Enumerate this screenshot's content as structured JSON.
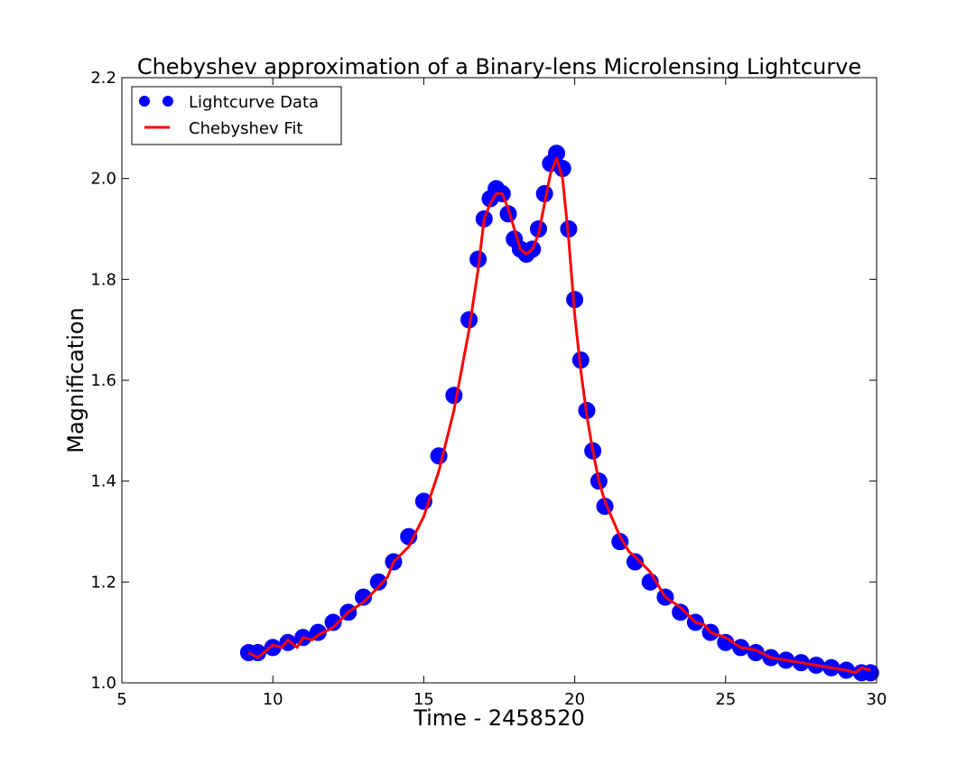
{
  "chart_data": {
    "type": "line",
    "title": "Chebyshev approximation of a Binary-lens Microlensing Lightcurve",
    "xlabel": "Time - 2458520",
    "ylabel": "Magnification",
    "xlim": [
      5,
      30
    ],
    "ylim": [
      1.0,
      2.2
    ],
    "xticks": [
      5,
      10,
      15,
      20,
      25,
      30
    ],
    "xtick_labels": [
      "5",
      "10",
      "15",
      "20",
      "25",
      "30"
    ],
    "yticks": [
      1.0,
      1.2,
      1.4,
      1.6,
      1.8,
      2.0,
      2.2
    ],
    "ytick_labels": [
      "1.0",
      "1.2",
      "1.4",
      "1.6",
      "1.8",
      "2.0",
      "2.2"
    ],
    "grid": false,
    "legend_position": "top-left",
    "series": [
      {
        "name": "Lightcurve Data",
        "kind": "scatter",
        "color": "#0000ff",
        "x": [
          9.2,
          9.5,
          10.0,
          10.5,
          11.0,
          11.5,
          12.0,
          12.5,
          13.0,
          13.5,
          14.0,
          14.5,
          15.0,
          15.5,
          16.0,
          16.5,
          16.8,
          17.0,
          17.2,
          17.4,
          17.6,
          17.8,
          18.0,
          18.2,
          18.4,
          18.6,
          18.8,
          19.0,
          19.2,
          19.4,
          19.6,
          19.8,
          20.0,
          20.2,
          20.4,
          20.6,
          20.8,
          21.0,
          21.5,
          22.0,
          22.5,
          23.0,
          23.5,
          24.0,
          24.5,
          25.0,
          25.5,
          26.0,
          26.5,
          27.0,
          27.5,
          28.0,
          28.5,
          29.0,
          29.5,
          29.8
        ],
        "y": [
          1.06,
          1.06,
          1.07,
          1.08,
          1.09,
          1.1,
          1.12,
          1.14,
          1.17,
          1.2,
          1.24,
          1.29,
          1.36,
          1.45,
          1.57,
          1.72,
          1.84,
          1.92,
          1.96,
          1.98,
          1.97,
          1.93,
          1.88,
          1.86,
          1.85,
          1.86,
          1.9,
          1.97,
          2.03,
          2.05,
          2.02,
          1.9,
          1.76,
          1.64,
          1.54,
          1.46,
          1.4,
          1.35,
          1.28,
          1.24,
          1.2,
          1.17,
          1.14,
          1.12,
          1.1,
          1.08,
          1.07,
          1.06,
          1.05,
          1.045,
          1.04,
          1.035,
          1.03,
          1.025,
          1.02,
          1.02
        ]
      },
      {
        "name": "Chebyshev Fit",
        "kind": "line",
        "color": "#ff0000",
        "x": [
          9.2,
          9.5,
          9.8,
          10.0,
          10.3,
          10.5,
          10.8,
          11.0,
          11.3,
          11.5,
          12.0,
          12.5,
          13.0,
          13.5,
          13.8,
          14.0,
          14.5,
          15.0,
          15.5,
          16.0,
          16.5,
          16.8,
          17.0,
          17.2,
          17.4,
          17.6,
          17.8,
          18.0,
          18.2,
          18.4,
          18.6,
          18.8,
          19.0,
          19.2,
          19.4,
          19.6,
          19.8,
          20.0,
          20.2,
          20.4,
          20.6,
          20.8,
          21.0,
          21.5,
          21.8,
          22.0,
          22.5,
          23.0,
          23.5,
          24.0,
          24.3,
          24.5,
          25.0,
          25.5,
          26.0,
          26.5,
          27.0,
          27.5,
          28.0,
          28.5,
          29.0,
          29.3,
          29.5,
          29.8
        ],
        "y": [
          1.06,
          1.05,
          1.065,
          1.075,
          1.07,
          1.085,
          1.07,
          1.09,
          1.085,
          1.095,
          1.11,
          1.14,
          1.16,
          1.19,
          1.21,
          1.24,
          1.27,
          1.33,
          1.42,
          1.54,
          1.7,
          1.82,
          1.92,
          1.95,
          1.97,
          1.97,
          1.94,
          1.9,
          1.86,
          1.85,
          1.86,
          1.89,
          1.95,
          2.01,
          2.04,
          2.0,
          1.88,
          1.73,
          1.62,
          1.53,
          1.46,
          1.4,
          1.36,
          1.29,
          1.26,
          1.25,
          1.22,
          1.17,
          1.15,
          1.12,
          1.115,
          1.1,
          1.09,
          1.07,
          1.065,
          1.05,
          1.045,
          1.04,
          1.035,
          1.03,
          1.025,
          1.02,
          1.03,
          1.025
        ]
      }
    ]
  }
}
